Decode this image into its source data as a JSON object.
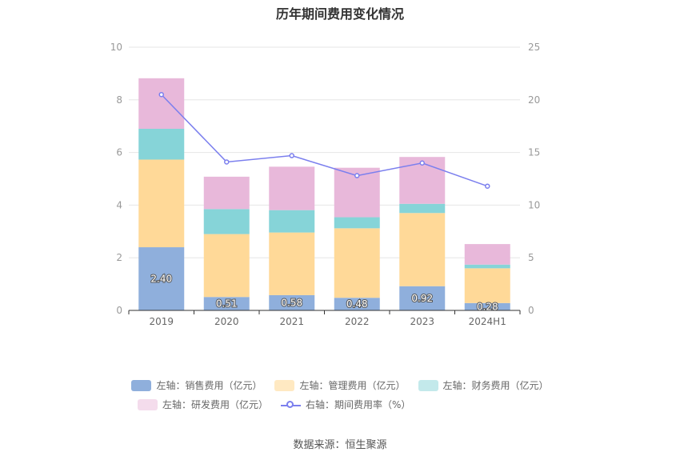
{
  "title": "历年期间费用变化情况",
  "source": "数据来源：恒生聚源",
  "colors": {
    "sales": "#8fafdc",
    "admin": "#ffd998",
    "finance": "#86d4d8",
    "rnd": "#e8b8da",
    "rate": "#7b7fee",
    "grid": "#e6e6e6",
    "axis": "#333333"
  },
  "chart_data": {
    "type": "bar",
    "stacked": true,
    "categories": [
      "2019",
      "2020",
      "2021",
      "2022",
      "2023",
      "2024H1"
    ],
    "ylim_left": [
      0,
      10
    ],
    "ylim_right": [
      0,
      25
    ],
    "yticks_left": [
      "0",
      "2",
      "4",
      "6",
      "8",
      "10"
    ],
    "yticks_right": [
      "0",
      "5",
      "10",
      "15",
      "20",
      "25"
    ],
    "series": [
      {
        "name": "左轴：销售费用（亿元）",
        "key": "sales",
        "axis": "left",
        "values": [
          2.4,
          0.51,
          0.58,
          0.48,
          0.92,
          0.28
        ],
        "labels": [
          "2.40",
          "0.51",
          "0.58",
          "0.48",
          "0.92",
          "0.28"
        ]
      },
      {
        "name": "左轴：管理费用（亿元）",
        "key": "admin",
        "axis": "left",
        "values": [
          3.33,
          2.39,
          2.38,
          2.64,
          2.78,
          1.32
        ]
      },
      {
        "name": "左轴：财务费用（亿元）",
        "key": "finance",
        "axis": "left",
        "values": [
          1.17,
          0.95,
          0.85,
          0.42,
          0.35,
          0.14
        ]
      },
      {
        "name": "左轴：研发费用（亿元）",
        "key": "rnd",
        "axis": "left",
        "values": [
          1.92,
          1.23,
          1.65,
          1.88,
          1.78,
          0.78
        ]
      },
      {
        "name": "右轴：期间费用率（%）",
        "key": "rate",
        "axis": "right",
        "type": "line",
        "values": [
          20.5,
          14.1,
          14.7,
          12.8,
          14.0,
          11.8
        ]
      }
    ]
  }
}
